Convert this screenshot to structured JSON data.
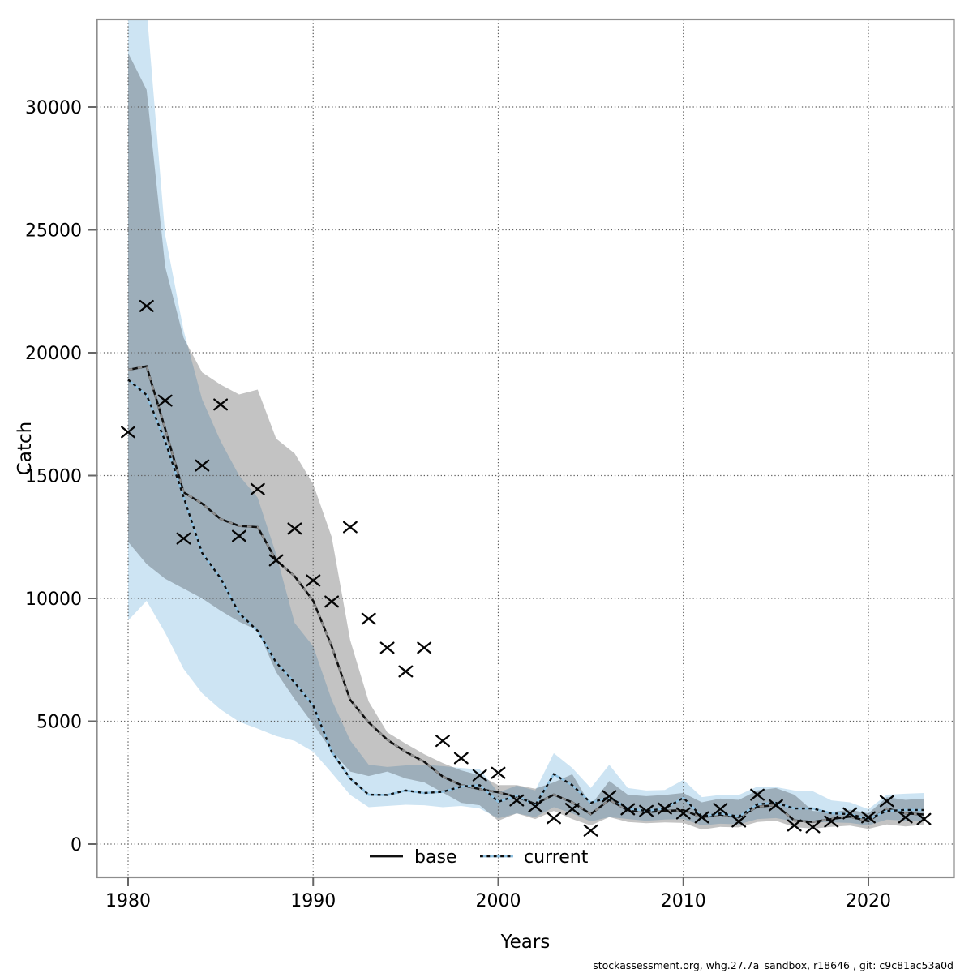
{
  "figure": {
    "caption": "stockassessment.org, whg.27.7a_sandbox, r18646 , git: c9c81ac53a0d",
    "background": "#ffffff",
    "border_color": "#8d8d8d",
    "grid_color": "#5f5f5f",
    "text_color": "#000000"
  },
  "chart_data": {
    "type": "line",
    "title": "",
    "xlabel": "Years",
    "ylabel": "Catch",
    "x_ticks": [
      1980,
      1990,
      2000,
      2010,
      2020
    ],
    "y_ticks": [
      0,
      5000,
      10000,
      15000,
      20000,
      25000,
      30000
    ],
    "xlim": [
      1978.3,
      2024.7
    ],
    "ylim": [
      -1350,
      33600
    ],
    "grid": "dotted",
    "legend": {
      "position": "bottom-center",
      "entries": [
        "base",
        "current"
      ]
    },
    "years": [
      1980,
      1981,
      1982,
      1983,
      1984,
      1985,
      1986,
      1987,
      1988,
      1989,
      1990,
      1991,
      1992,
      1993,
      1994,
      1995,
      1996,
      1997,
      1998,
      1999,
      2000,
      2001,
      2002,
      2003,
      2004,
      2005,
      2006,
      2007,
      2008,
      2009,
      2010,
      2011,
      2012,
      2013,
      2014,
      2015,
      2016,
      2017,
      2018,
      2019,
      2020,
      2021,
      2022,
      2023
    ],
    "series": [
      {
        "name": "base",
        "line_color": "#101010",
        "dash_color": "#8f8f8f",
        "line_style": "solid",
        "band_color": "#c3c3c3",
        "values": [
          19300,
          19450,
          16900,
          14320,
          13860,
          13230,
          12950,
          12900,
          11550,
          10900,
          9900,
          8050,
          5870,
          4950,
          4250,
          3750,
          3350,
          2750,
          2400,
          2240,
          2110,
          1930,
          1630,
          2010,
          1700,
          1220,
          1800,
          1380,
          1300,
          1350,
          1380,
          1090,
          1200,
          1090,
          1520,
          1580,
          960,
          900,
          1020,
          1120,
          930,
          1450,
          1250,
          1200
        ],
        "band_lo": [
          12300,
          11400,
          10800,
          10400,
          10000,
          9500,
          9050,
          8700,
          7000,
          5900,
          4880,
          3800,
          2950,
          2770,
          2950,
          2670,
          2510,
          2100,
          1680,
          1580,
          950,
          1250,
          1020,
          1350,
          1020,
          760,
          1100,
          900,
          850,
          880,
          860,
          590,
          700,
          680,
          900,
          950,
          690,
          630,
          700,
          750,
          620,
          800,
          720,
          790
        ],
        "band_hi": [
          32200,
          30700,
          23500,
          20600,
          19200,
          18700,
          18300,
          18500,
          16500,
          15900,
          14650,
          12500,
          8300,
          5800,
          4550,
          4090,
          3660,
          3300,
          3000,
          2800,
          2400,
          2400,
          2250,
          2510,
          2840,
          1580,
          2570,
          2010,
          1950,
          2000,
          2080,
          1700,
          1850,
          1800,
          2180,
          2280,
          2010,
          1350,
          1300,
          1400,
          1250,
          1910,
          1800,
          1850
        ]
      },
      {
        "name": "current",
        "line_color": "#8fc1e1",
        "dash_color": "#0c0c0c",
        "line_style": "dotted",
        "band_color": "#cde4f3",
        "values": [
          18900,
          18280,
          16400,
          14120,
          11850,
          10820,
          9400,
          8680,
          7390,
          6570,
          5640,
          3760,
          2670,
          2010,
          2000,
          2180,
          2080,
          2130,
          2340,
          2400,
          1720,
          1980,
          1580,
          2840,
          2400,
          1680,
          1910,
          1450,
          1350,
          1450,
          1880,
          1120,
          1250,
          1120,
          1620,
          1680,
          1450,
          1450,
          1250,
          1220,
          1020,
          1350,
          1390,
          1390
        ],
        "band_lo": [
          9100,
          9900,
          8600,
          7130,
          6140,
          5480,
          4980,
          4700,
          4400,
          4200,
          3760,
          2900,
          2000,
          1500,
          1550,
          1600,
          1580,
          1500,
          1550,
          1450,
          1050,
          1250,
          1100,
          1500,
          1250,
          920,
          1100,
          1020,
          950,
          1000,
          1020,
          760,
          830,
          800,
          1020,
          1060,
          920,
          900,
          880,
          860,
          760,
          1000,
          950,
          950
        ],
        "band_hi": [
          36500,
          34000,
          24800,
          20900,
          18100,
          16400,
          15000,
          14100,
          11800,
          9000,
          8050,
          5870,
          4220,
          3230,
          3140,
          3200,
          3230,
          3170,
          3100,
          3040,
          2100,
          2380,
          2180,
          3700,
          3100,
          2280,
          3230,
          2280,
          2180,
          2200,
          2610,
          1910,
          2000,
          2000,
          2340,
          2320,
          2180,
          2150,
          1780,
          1700,
          1420,
          2010,
          2050,
          2080
        ]
      }
    ],
    "observations": {
      "marker": "x",
      "color": "#050505",
      "values": [
        16770,
        21900,
        18050,
        12440,
        15410,
        17890,
        12540,
        14450,
        11550,
        12840,
        10730,
        9870,
        12900,
        9170,
        7990,
        7030,
        7990,
        4200,
        3500,
        2800,
        2900,
        1780,
        1530,
        1060,
        1430,
        550,
        1950,
        1420,
        1350,
        1450,
        1250,
        1090,
        1430,
        920,
        2010,
        1580,
        760,
        690,
        920,
        1250,
        1090,
        1750,
        1090,
        1020
      ]
    }
  }
}
